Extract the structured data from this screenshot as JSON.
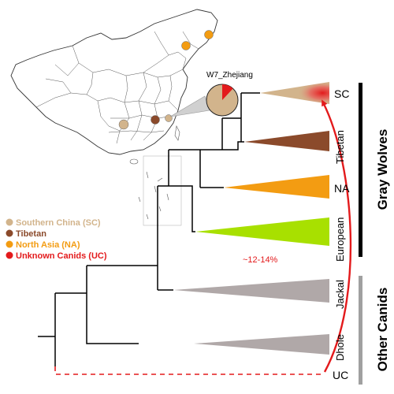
{
  "callout": {
    "site_label": "W7_Zhejiang",
    "pie_unknown_fraction": 0.12
  },
  "legend": [
    {
      "label": "Southern China (SC)",
      "color": "#d2b48c"
    },
    {
      "label": "Tibetan",
      "color": "#8b4a2b"
    },
    {
      "label": "North Asia (NA)",
      "color": "#f39c12"
    },
    {
      "label": "Unknown Canids (UC)",
      "color": "#e31a1c"
    }
  ],
  "tree": {
    "leaves": [
      {
        "label": "SC",
        "color": "#d2b48c"
      },
      {
        "label": "Tibetan",
        "color": "#8b4a2b"
      },
      {
        "label": "NA",
        "color": "#f39c12"
      },
      {
        "label": "European",
        "color": "#a8e000"
      },
      {
        "label": "Jackal",
        "color": "#b0a8a8"
      },
      {
        "label": "Dhole",
        "color": "#b0a8a8"
      },
      {
        "label": "UC",
        "color": "#e31a1c"
      }
    ],
    "introgression_label": "~12-14%",
    "groups": [
      {
        "label": "Gray Wolves",
        "bar_color": "#000000"
      },
      {
        "label": "Other Canids",
        "bar_color": "#a0a0a0"
      }
    ]
  },
  "map": {
    "markers": [
      {
        "color": "#f39c12"
      },
      {
        "color": "#f39c12"
      },
      {
        "color": "#d2b48c"
      },
      {
        "color": "#8b4a2b"
      },
      {
        "color": "#d2b48c"
      }
    ]
  }
}
